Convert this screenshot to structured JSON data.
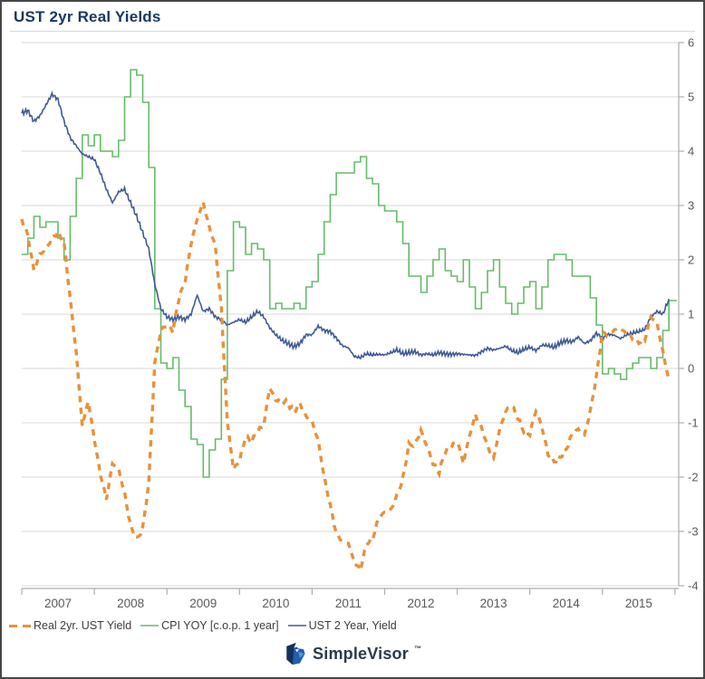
{
  "header": {
    "title": "UST 2yr Real Yields"
  },
  "logo": {
    "text": "SimpleVisor",
    "tm": "™"
  },
  "colors": {
    "title": "#17375E",
    "grid": "#DADADA",
    "axis": "#ADADAD",
    "tick_label": "#595959",
    "legend_text": "#3C3C3C",
    "real_orange": "#E8913A",
    "cpi_green": "#66BB6A",
    "ust_blue": "#3E5A96",
    "logo_dark_blue": "#13315C",
    "logo_mid_blue": "#1F5FAD",
    "logo_light_blue": "#4E9BD4"
  },
  "chart_data": {
    "type": "line",
    "title": "UST 2yr Real Yields",
    "x_start_year": 2007,
    "points_per_year": 12,
    "xlabel": "",
    "ylabel": "",
    "ylim": [
      -4,
      6
    ],
    "yticks": [
      6,
      5,
      4,
      3,
      2,
      1,
      0,
      -1,
      -2,
      -3,
      -4
    ],
    "xticklabels": [
      "2007",
      "2008",
      "2009",
      "2010",
      "2011",
      "2012",
      "2013",
      "2014",
      "2015"
    ],
    "grid": "horizontal",
    "legend_position": "bottom-left",
    "series": [
      {
        "name": "Real 2yr. UST Yield",
        "style": "dashed",
        "color": "#E8913A",
        "values": [
          2.75,
          2.45,
          1.8,
          2.1,
          2.2,
          2.4,
          2.5,
          2.3,
          1.3,
          0.3,
          -1.05,
          -0.6,
          -1.3,
          -1.95,
          -2.4,
          -1.75,
          -1.85,
          -2.3,
          -2.9,
          -3.15,
          -2.95,
          -2.1,
          0.1,
          0.7,
          0.8,
          0.7,
          1.3,
          1.6,
          2.3,
          2.75,
          3.05,
          2.6,
          2.25,
          1.1,
          -1.0,
          -1.85,
          -1.7,
          -1.25,
          -1.35,
          -1.15,
          -1.05,
          -0.35,
          -0.58,
          -0.58,
          -0.64,
          -0.8,
          -0.64,
          -0.88,
          -0.98,
          -1.32,
          -2.0,
          -2.52,
          -3.04,
          -3.18,
          -3.22,
          -3.58,
          -3.7,
          -3.23,
          -3.15,
          -2.74,
          -2.65,
          -2.61,
          -2.36,
          -2.03,
          -1.41,
          -1.39,
          -1.15,
          -1.43,
          -1.75,
          -1.91,
          -1.53,
          -1.44,
          -1.33,
          -1.74,
          -1.25,
          -0.86,
          -1.09,
          -1.43,
          -1.66,
          -1.13,
          -0.79,
          -0.67,
          -0.91,
          -1.15,
          -1.21,
          -0.77,
          -1.07,
          -1.58,
          -1.71,
          -1.63,
          -1.49,
          -1.21,
          -1.12,
          -1.24,
          -0.79,
          -0.15,
          0.66,
          0.63,
          0.71,
          0.75,
          0.62,
          0.55,
          0.48,
          0.52,
          0.95,
          0.85,
          0.3,
          -0.2
        ]
      },
      {
        "name": "CPI YOY [c.o.p. 1 year]",
        "style": "step",
        "color": "#66BB6A",
        "values": [
          2.1,
          2.4,
          2.8,
          2.6,
          2.7,
          2.7,
          2.4,
          2.0,
          2.8,
          3.5,
          4.3,
          4.1,
          4.3,
          4.0,
          4.0,
          3.9,
          4.2,
          5.0,
          5.5,
          5.4,
          4.9,
          3.7,
          1.1,
          0.1,
          0.0,
          0.2,
          -0.4,
          -0.7,
          -1.3,
          -1.4,
          -2.0,
          -1.5,
          -1.3,
          -0.2,
          1.8,
          2.7,
          2.6,
          2.1,
          2.3,
          2.2,
          2.0,
          1.1,
          1.2,
          1.1,
          1.1,
          1.2,
          1.1,
          1.5,
          1.6,
          2.1,
          2.7,
          3.2,
          3.6,
          3.6,
          3.6,
          3.8,
          3.9,
          3.5,
          3.4,
          3.0,
          2.9,
          2.9,
          2.7,
          2.3,
          1.7,
          1.7,
          1.4,
          1.7,
          2.0,
          2.2,
          1.8,
          1.7,
          1.6,
          2.0,
          1.5,
          1.1,
          1.4,
          1.8,
          2.0,
          1.5,
          1.2,
          1.0,
          1.2,
          1.5,
          1.6,
          1.1,
          1.5,
          2.0,
          2.1,
          2.1,
          2.0,
          1.7,
          1.7,
          1.7,
          1.3,
          0.8,
          -0.1,
          0.0,
          -0.1,
          -0.2,
          0.0,
          0.1,
          0.2,
          0.2,
          0.0,
          0.2,
          0.7,
          1.25
        ]
      },
      {
        "name": "UST 2 Year, Yield",
        "style": "line",
        "color": "#3E5A96",
        "values": [
          4.7,
          4.75,
          4.55,
          4.65,
          4.85,
          5.05,
          4.95,
          4.55,
          4.25,
          4.1,
          3.95,
          3.9,
          3.85,
          3.6,
          3.3,
          3.05,
          3.25,
          3.3,
          3.05,
          2.8,
          2.5,
          2.2,
          1.55,
          1.1,
          0.95,
          0.9,
          0.95,
          0.9,
          1.0,
          1.35,
          1.05,
          1.1,
          0.95,
          0.9,
          0.8,
          0.85,
          0.9,
          0.85,
          0.95,
          1.05,
          0.95,
          0.75,
          0.62,
          0.52,
          0.46,
          0.4,
          0.46,
          0.62,
          0.62,
          0.78,
          0.7,
          0.68,
          0.56,
          0.42,
          0.38,
          0.22,
          0.2,
          0.27,
          0.25,
          0.26,
          0.25,
          0.29,
          0.34,
          0.27,
          0.29,
          0.31,
          0.25,
          0.27,
          0.25,
          0.29,
          0.27,
          0.26,
          0.27,
          0.26,
          0.25,
          0.24,
          0.31,
          0.37,
          0.34,
          0.37,
          0.41,
          0.33,
          0.29,
          0.35,
          0.39,
          0.33,
          0.43,
          0.42,
          0.39,
          0.47,
          0.51,
          0.49,
          0.58,
          0.46,
          0.51,
          0.65,
          0.56,
          0.63,
          0.61,
          0.55,
          0.62,
          0.65,
          0.68,
          0.72,
          0.95,
          1.05,
          1.0,
          1.28
        ]
      }
    ]
  }
}
